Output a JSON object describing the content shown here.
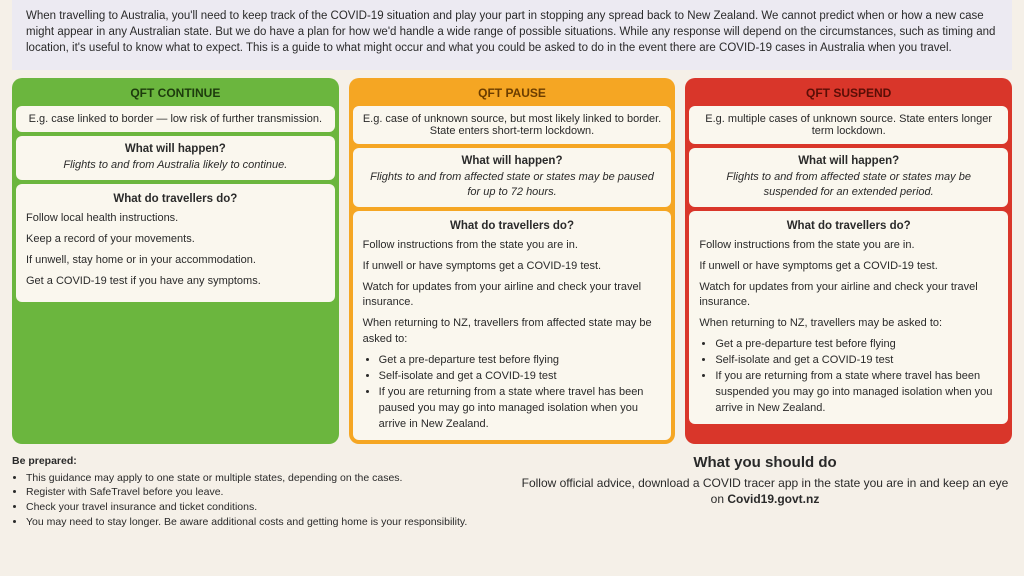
{
  "intro": "When travelling to Australia, you'll need to keep track of the COVID-19 situation and play your part in stopping any spread back to New Zealand. We cannot predict when or how a new case might appear in any Australian state. But we do have a plan for how we'd handle a wide range of possible situations. While any response will depend on the circumstances, such as timing and location, it's useful to know what to expect. This is a guide to what might occur and what you could be asked to do in the event there are COVID-19 cases in Australia when you travel.",
  "cards": [
    {
      "bg": "#6bb63e",
      "hdr_color": "#1d3b0d",
      "title": "QFT CONTINUE",
      "example": "E.g. case linked to border — low risk of further transmission.",
      "happen_label": "What will happen?",
      "happen": "Flights to and from Australia likely to continue.",
      "do_label": "What do travellers do?",
      "do_paras": [
        "Follow local health instructions.",
        "Keep a record of your movements.",
        "If unwell, stay home or in your accommodation.",
        "Get a COVID-19 test if you have any symptoms."
      ],
      "return_intro": "",
      "return_bullets": []
    },
    {
      "bg": "#f5a623",
      "hdr_color": "#6b3d00",
      "title": "QFT PAUSE",
      "example": "E.g. case of unknown source, but most likely linked to border. State enters short-term lockdown.",
      "happen_label": "What will happen?",
      "happen": "Flights to and from affected state or states may be paused for up to 72 hours.",
      "do_label": "What do travellers do?",
      "do_paras": [
        "Follow instructions from the state you are in.",
        "If unwell or have symptoms get a COVID-19 test.",
        "Watch for updates from your airline and check your travel insurance."
      ],
      "return_intro": "When returning to NZ, travellers from affected state may be asked to:",
      "return_bullets": [
        "Get a pre-departure test before flying",
        "Self-isolate and get a COVID-19 test",
        "If you are returning from a state where travel has been paused you may go into managed isolation when you arrive in New Zealand."
      ]
    },
    {
      "bg": "#d9362a",
      "hdr_color": "#5a0e06",
      "title": "QFT SUSPEND",
      "example": "E.g. multiple cases of unknown source. State enters longer term lockdown.",
      "happen_label": "What will happen?",
      "happen": "Flights to and from affected state or states may be suspended for an extended period.",
      "do_label": "What do travellers do?",
      "do_paras": [
        "Follow instructions from the state you are in.",
        "If unwell or have symptoms get a COVID-19 test.",
        "Watch for updates from your airline and check your travel insurance."
      ],
      "return_intro": "When returning to NZ, travellers may be asked to:",
      "return_bullets": [
        "Get a pre-departure test before flying",
        "Self-isolate and get a COVID-19 test",
        "If you are returning from a state where travel has been suspended you may go into managed isolation when you arrive in New Zealand."
      ]
    }
  ],
  "footer": {
    "prepared_title": "Be prepared:",
    "prepared": [
      "This guidance may apply to one state or multiple states, depending on the cases.",
      "Register with SafeTravel before you leave.",
      "Check your travel insurance and ticket conditions.",
      "You may need to stay longer. Be aware additional costs and getting home is your responsibility."
    ],
    "should_title": "What you should do",
    "should_text_a": "Follow official advice, download a COVID tracer app in the state you are in and keep an eye on ",
    "should_text_b": "Covid19.govt.nz"
  }
}
